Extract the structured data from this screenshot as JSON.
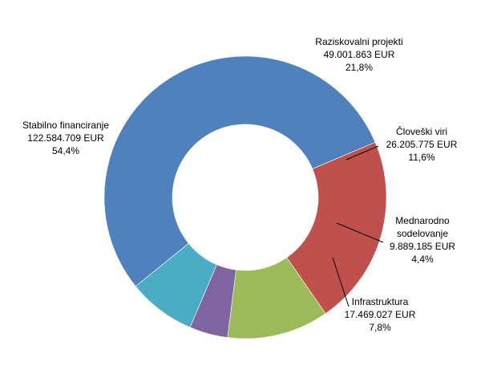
{
  "chart_data": {
    "type": "pie",
    "donut": true,
    "title": "",
    "legend": "none",
    "slices": [
      {
        "name": "Raziskovalni projekti",
        "value": 49001863,
        "value_label": "49.001.863 EUR",
        "percent_label": "21,8%",
        "color": "#C0504D"
      },
      {
        "name": "Človeški viri",
        "value": 26205775,
        "value_label": "26.205.775 EUR",
        "percent_label": "11,6%",
        "color": "#9BBB59"
      },
      {
        "name": "Mednarodno sodelovanje",
        "name_lines": [
          "Mednarodno",
          "sodelovanje"
        ],
        "value": 9889185,
        "value_label": "9.889.185 EUR",
        "percent_label": "4,4%",
        "color": "#8064A2"
      },
      {
        "name": "Infrastruktura",
        "value": 17469027,
        "value_label": "17.469.027 EUR",
        "percent_label": "7,8%",
        "color": "#4BACC6"
      },
      {
        "name": "Stabilno financiranje",
        "value": 122584709,
        "value_label": "122.584.709 EUR",
        "percent_label": "54,4%",
        "color": "#4F81BD"
      }
    ]
  }
}
